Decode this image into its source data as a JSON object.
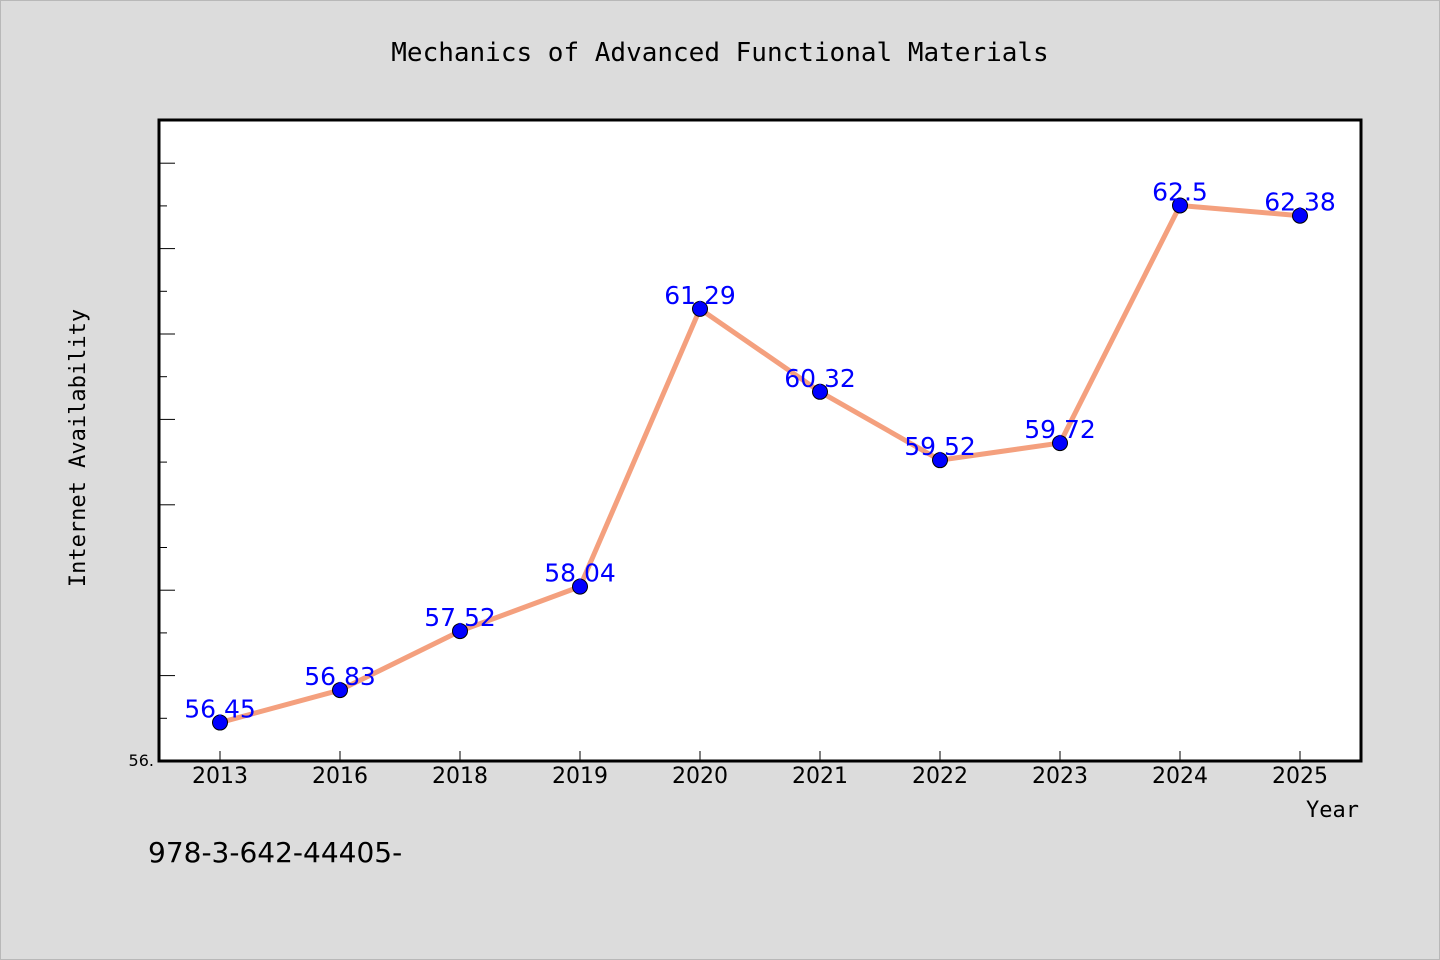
{
  "chart_data": {
    "type": "line",
    "title": "Mechanics of Advanced Functional Materials",
    "xlabel": "Year",
    "ylabel": "Internet Availability",
    "categories": [
      "2013",
      "2016",
      "2018",
      "2019",
      "2020",
      "2021",
      "2022",
      "2023",
      "2024",
      "2025"
    ],
    "series": [
      {
        "values": [
          56.45,
          56.83,
          57.52,
          58.04,
          61.29,
          60.32,
          59.52,
          59.72,
          62.5,
          62.38
        ],
        "data_labels": [
          "56.45",
          "56.83",
          "57.52",
          "58.04",
          "61.29",
          "60.32",
          "59.52",
          "59.72",
          "62.5",
          "62.38"
        ]
      }
    ],
    "ylim": [
      56.0,
      63.5
    ],
    "y_tick_labels": [
      "56."
    ],
    "grid": false,
    "legend": "none",
    "colors": {
      "line": "#f4a07e",
      "marker": "#0000ff",
      "data_label": "#0000ff",
      "plot_background": "#ffffff",
      "figure_background": "#dcdcdc"
    }
  },
  "footer": {
    "isbn": "978-3-642-44405-"
  }
}
